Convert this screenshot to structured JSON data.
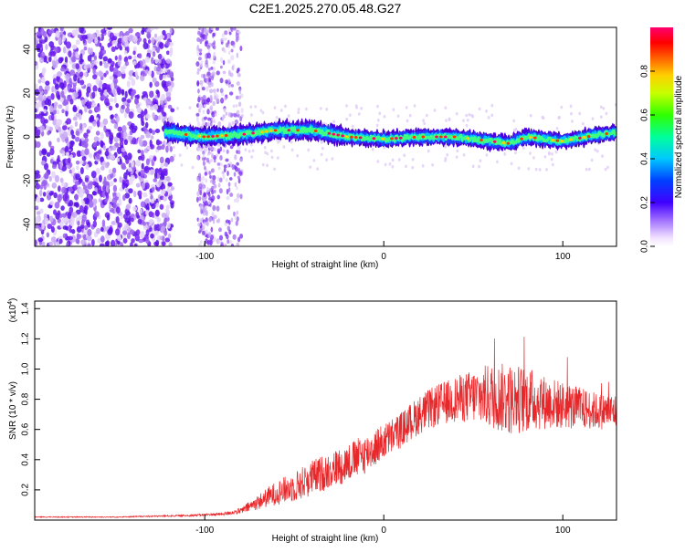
{
  "title": "C2E1.2025.270.05.48.G27",
  "chart_data": [
    {
      "type": "heatmap",
      "xlabel": "Height of straight line (km)",
      "ylabel": "Frequency (Hz)",
      "xlim": [
        -195,
        130
      ],
      "ylim": [
        -50,
        50
      ],
      "xticks": [
        -100,
        0,
        100
      ],
      "yticks": [
        -40,
        -20,
        0,
        20,
        40
      ],
      "colorbar": {
        "label": "Normalized spectral amplitude",
        "range": [
          0,
          1
        ],
        "ticks": [
          0.0,
          0.2,
          0.4,
          0.6,
          0.8
        ],
        "colors": [
          "#ffffff",
          "#e0c8f0",
          "#8a2be2",
          "#5a00e0",
          "#0040ff",
          "#00c8ff",
          "#00ff80",
          "#40ff00",
          "#ffff00",
          "#ff8000",
          "#ff0000",
          "#ff0070"
        ]
      },
      "ridge": {
        "description_points_x": [
          -120,
          -100,
          -80,
          -60,
          -40,
          -20,
          0,
          20,
          40,
          60,
          70,
          80,
          100,
          120,
          130
        ],
        "center_freq": [
          2,
          0,
          1,
          3,
          3,
          0,
          -1,
          0,
          0,
          -2,
          -3,
          0,
          -2,
          1,
          2
        ]
      }
    },
    {
      "type": "line",
      "xlabel": "Height of straight line (km)",
      "ylabel": "SNR (10 * v/v)",
      "scale_label": "(x10",
      "scale_exp": "4",
      "xlim": [
        -195,
        130
      ],
      "ylim": [
        0,
        1.45
      ],
      "xticks": [
        -100,
        0,
        100
      ],
      "yticks": [
        0.2,
        0.4,
        0.6,
        0.8,
        1.0,
        1.2,
        1.4
      ],
      "series": [
        {
          "color": "#e8272a",
          "x": [
            -195,
            -150,
            -110,
            -90,
            -80,
            -70,
            -60,
            -50,
            -40,
            -30,
            -20,
            -10,
            0,
            10,
            20,
            30,
            40,
            50,
            60,
            70,
            80,
            90,
            100,
            110,
            120,
            130
          ],
          "y": [
            0.02,
            0.02,
            0.03,
            0.04,
            0.06,
            0.12,
            0.18,
            0.22,
            0.28,
            0.33,
            0.38,
            0.44,
            0.52,
            0.6,
            0.7,
            0.76,
            0.8,
            0.82,
            0.82,
            0.8,
            0.8,
            0.78,
            0.76,
            0.74,
            0.72,
            0.72
          ],
          "noise": [
            0.003,
            0.003,
            0.006,
            0.01,
            0.02,
            0.05,
            0.08,
            0.1,
            0.12,
            0.12,
            0.13,
            0.13,
            0.12,
            0.12,
            0.13,
            0.14,
            0.15,
            0.18,
            0.22,
            0.24,
            0.22,
            0.18,
            0.16,
            0.14,
            0.12,
            0.12
          ]
        }
      ]
    }
  ]
}
